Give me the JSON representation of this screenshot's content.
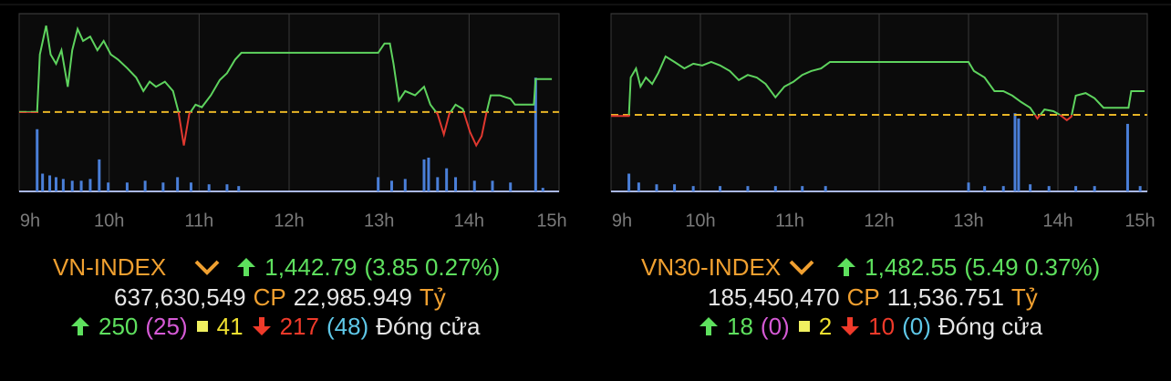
{
  "chart_data": [
    {
      "type": "line",
      "xlim": [
        9,
        15
      ],
      "xticks": [
        {
          "value": 9,
          "label": "9h"
        },
        {
          "value": 10,
          "label": "10h"
        },
        {
          "value": 11,
          "label": "11h"
        },
        {
          "value": 12,
          "label": "12h"
        },
        {
          "value": 13,
          "label": "13h"
        },
        {
          "value": 14,
          "label": "14h"
        },
        {
          "value": 15,
          "label": "15h"
        }
      ],
      "ylim": [
        1429.6,
        1450.5
      ],
      "y2lim": [
        0,
        100
      ],
      "baseline": 1438.94,
      "baseline_color": "#e8b526",
      "below_color": "#e0382f",
      "series": [
        {
          "color": "#5ed35e",
          "x": [
            9.0,
            9.2,
            9.23,
            9.3,
            9.35,
            9.41,
            9.47,
            9.54,
            9.59,
            9.65,
            9.71,
            9.79,
            9.87,
            9.94,
            10.02,
            10.1,
            10.2,
            10.3,
            10.38,
            10.45,
            10.52,
            10.62,
            10.71,
            10.77,
            10.83,
            10.89,
            10.96,
            11.03,
            11.13,
            11.23,
            11.31,
            11.4,
            11.47,
            12.99,
            13.06,
            13.12,
            13.16,
            13.22,
            13.29,
            13.4,
            13.5,
            13.57,
            13.65,
            13.72,
            13.78,
            13.85,
            13.93,
            14.01,
            14.08,
            14.14,
            14.19,
            14.24,
            14.34,
            14.46,
            14.51,
            14.72,
            14.74,
            14.92
          ],
          "values": [
            1438.94,
            1438.94,
            1445.7,
            1449.1,
            1445.7,
            1444.6,
            1446.2,
            1441.9,
            1446.2,
            1448.7,
            1447.3,
            1447.8,
            1446.2,
            1447.3,
            1445.7,
            1445.1,
            1444.1,
            1443.0,
            1441.4,
            1442.5,
            1441.9,
            1442.5,
            1441.4,
            1439.0,
            1435.0,
            1438.7,
            1439.8,
            1439.5,
            1440.9,
            1442.7,
            1443.5,
            1445.1,
            1445.9,
            1445.9,
            1447.0,
            1447.0,
            1444.6,
            1440.3,
            1441.4,
            1440.9,
            1441.9,
            1439.8,
            1438.7,
            1436.3,
            1438.7,
            1439.8,
            1439.3,
            1436.6,
            1435.0,
            1436.1,
            1438.7,
            1440.9,
            1440.9,
            1440.5,
            1439.8,
            1439.8,
            1442.8,
            1442.8
          ]
        },
        {
          "color": "#4a7fd8",
          "axis": "y2",
          "x": [
            9.2,
            9.26,
            9.34,
            9.41,
            9.49,
            9.59,
            9.69,
            9.79,
            9.89,
            9.99,
            10.2,
            10.4,
            10.6,
            10.76,
            10.91,
            11.11,
            11.31,
            11.44,
            12.99,
            13.14,
            13.29,
            13.5,
            13.55,
            13.65,
            13.75,
            13.85,
            14.06,
            14.26,
            14.46,
            14.74,
            14.82
          ],
          "values": [
            35,
            10,
            9,
            8,
            7,
            6,
            6,
            7,
            18,
            5,
            5,
            6,
            5,
            8,
            5,
            4,
            4,
            3,
            8,
            6,
            7,
            18,
            19,
            8,
            13,
            8,
            6,
            6,
            5,
            64,
            2
          ]
        }
      ],
      "summary": {
        "name": "VN-INDEX",
        "price": "1,442.79",
        "change": "(3.85 0.27%)",
        "volume": "637,630,549",
        "cp": "CP",
        "value": "22,985.949",
        "unit": "Tỷ",
        "up": "250",
        "ceiling": "(25)",
        "flat": "41",
        "down": "217",
        "floor": "(48)",
        "status": "Đóng cửa"
      }
    },
    {
      "type": "line",
      "xlim": [
        9,
        15
      ],
      "xticks": [
        {
          "value": 9,
          "label": "9h"
        },
        {
          "value": 10,
          "label": "10h"
        },
        {
          "value": 11,
          "label": "11h"
        },
        {
          "value": 12,
          "label": "12h"
        },
        {
          "value": 13,
          "label": "13h"
        },
        {
          "value": 14,
          "label": "14h"
        },
        {
          "value": 15,
          "label": "15h"
        }
      ],
      "ylim": [
        1459.3,
        1500.5
      ],
      "y2lim": [
        0,
        100
      ],
      "baseline": 1477.06,
      "baseline_color": "#e8b526",
      "below_color": "#e0382f",
      "series": [
        {
          "color": "#5ed35e",
          "x": [
            9.0,
            9.2,
            9.22,
            9.28,
            9.33,
            9.39,
            9.46,
            9.53,
            9.61,
            9.71,
            9.82,
            9.92,
            10.02,
            10.12,
            10.22,
            10.33,
            10.43,
            10.53,
            10.63,
            10.73,
            10.84,
            10.94,
            11.04,
            11.14,
            11.24,
            11.35,
            11.45,
            13.0,
            13.06,
            13.18,
            13.29,
            13.39,
            13.49,
            13.59,
            13.69,
            13.77,
            13.85,
            13.95,
            14.02,
            14.1,
            14.15,
            14.2,
            14.31,
            14.41,
            14.51,
            14.79,
            14.82,
            14.97
          ],
          "values": [
            1476.8,
            1476.8,
            1485.7,
            1487.8,
            1483.6,
            1485.7,
            1484.2,
            1486.8,
            1490.6,
            1489.3,
            1487.8,
            1488.9,
            1488.5,
            1489.3,
            1488.5,
            1487.2,
            1485.1,
            1486.3,
            1485.7,
            1484.2,
            1481.1,
            1483.6,
            1484.7,
            1486.3,
            1487.2,
            1487.8,
            1489.3,
            1489.3,
            1487.2,
            1485.7,
            1482.55,
            1482.55,
            1481.5,
            1480.0,
            1478.7,
            1476.2,
            1478.3,
            1477.9,
            1477.06,
            1475.8,
            1476.6,
            1481.5,
            1482.1,
            1480.9,
            1478.7,
            1478.7,
            1482.55,
            1482.55
          ]
        },
        {
          "color": "#4a7fd8",
          "axis": "y2",
          "x": [
            9.2,
            9.31,
            9.51,
            9.71,
            9.92,
            10.22,
            10.53,
            10.84,
            11.14,
            11.4,
            13.0,
            13.18,
            13.39,
            13.52,
            13.56,
            13.69,
            13.9,
            14.2,
            14.41,
            14.78,
            14.92
          ],
          "values": [
            10,
            5,
            4,
            4,
            3,
            3,
            3,
            3,
            3,
            3,
            5,
            3,
            3,
            44,
            41,
            4,
            3,
            3,
            3,
            38,
            3
          ]
        }
      ],
      "summary": {
        "name": "VN30-INDEX",
        "price": "1,482.55",
        "change": "(5.49 0.37%)",
        "volume": "185,450,470",
        "cp": "CP",
        "value": "11,536.751",
        "unit": "Tỷ",
        "up": "18",
        "ceiling": "(0)",
        "flat": "2",
        "down": "10",
        "floor": "(0)",
        "status": "Đóng cửa"
      }
    }
  ]
}
